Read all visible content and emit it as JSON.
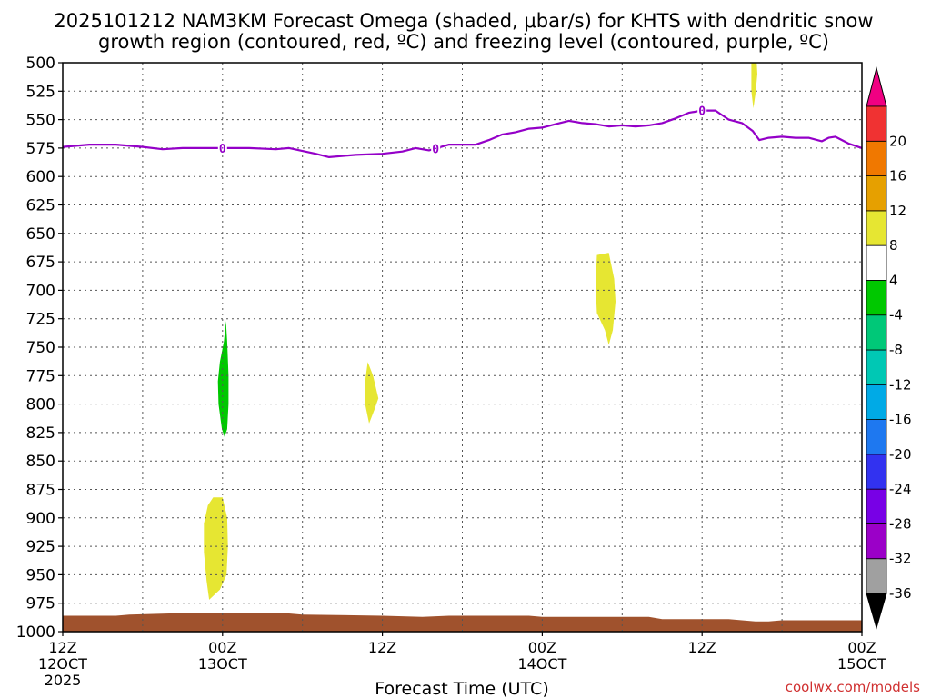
{
  "chart_data": {
    "type": "contour",
    "title_line1": "2025101212 NAM3KM Forecast Omega (shaded, μbar/s) for KHTS with dendritic snow",
    "title_line2": "growth region (contoured, red, ºC) and freezing level (contoured, purple, ºC)",
    "xlabel": "Forecast Time (UTC)",
    "credit": "coolwx.com/models",
    "y_axis": {
      "scale": "pressure (hPa), inverted",
      "ylim": [
        500,
        1000
      ],
      "ticks": [
        "500",
        "525",
        "550",
        "575",
        "600",
        "625",
        "650",
        "675",
        "700",
        "725",
        "750",
        "775",
        "800",
        "825",
        "850",
        "875",
        "900",
        "925",
        "950",
        "975",
        "1000"
      ]
    },
    "x_axis": {
      "xlim_hours": [
        0,
        60
      ],
      "ticks": [
        {
          "hour": 0,
          "l1": "12Z",
          "l2": "12OCT",
          "l3": "2025"
        },
        {
          "hour": 12,
          "l1": "00Z",
          "l2": "13OCT",
          "l3": ""
        },
        {
          "hour": 24,
          "l1": "12Z",
          "l2": "",
          "l3": ""
        },
        {
          "hour": 36,
          "l1": "00Z",
          "l2": "14OCT",
          "l3": ""
        },
        {
          "hour": 48,
          "l1": "12Z",
          "l2": "",
          "l3": ""
        },
        {
          "hour": 60,
          "l1": "00Z",
          "l2": "15OCT",
          "l3": ""
        }
      ]
    },
    "freezing_level": {
      "label": "0",
      "color": "#9400c8",
      "label_hours": [
        12,
        28,
        48
      ],
      "points": [
        [
          0,
          574
        ],
        [
          2,
          572
        ],
        [
          4,
          572
        ],
        [
          6,
          574
        ],
        [
          7.5,
          576
        ],
        [
          9,
          575
        ],
        [
          11,
          575
        ],
        [
          12,
          575
        ],
        [
          14,
          575
        ],
        [
          16,
          576
        ],
        [
          17,
          575
        ],
        [
          19,
          580
        ],
        [
          20,
          583
        ],
        [
          22,
          581
        ],
        [
          24,
          580
        ],
        [
          25.5,
          578
        ],
        [
          26.5,
          575
        ],
        [
          27.5,
          577
        ],
        [
          29,
          572
        ],
        [
          31,
          572
        ],
        [
          32,
          568
        ],
        [
          33,
          563
        ],
        [
          34,
          561
        ],
        [
          35,
          558
        ],
        [
          36,
          557
        ],
        [
          37,
          554
        ],
        [
          38,
          551
        ],
        [
          39,
          553
        ],
        [
          40,
          554
        ],
        [
          41,
          556
        ],
        [
          42,
          555
        ],
        [
          43,
          556
        ],
        [
          44,
          555
        ],
        [
          45,
          553
        ],
        [
          46,
          549
        ],
        [
          47,
          544
        ],
        [
          48,
          542
        ],
        [
          49,
          542
        ],
        [
          49.5,
          546
        ],
        [
          50,
          550
        ],
        [
          51,
          553
        ],
        [
          51.8,
          560
        ],
        [
          52.3,
          568
        ],
        [
          53,
          566
        ],
        [
          54,
          565
        ],
        [
          55,
          566
        ],
        [
          56,
          566
        ],
        [
          57,
          569
        ],
        [
          57.5,
          566
        ],
        [
          58,
          565
        ],
        [
          59,
          571
        ],
        [
          60,
          575
        ],
        [
          60.5,
          576
        ]
      ]
    },
    "omega_shaded": [
      {
        "value_range": "-8 to -4",
        "color": "#00c800",
        "points": [
          [
            11.8,
            763
          ],
          [
            12.1,
            745
          ],
          [
            12.25,
            727
          ],
          [
            12.35,
            745
          ],
          [
            12.45,
            775
          ],
          [
            12.45,
            800
          ],
          [
            12.35,
            822
          ],
          [
            12.15,
            829
          ],
          [
            11.95,
            822
          ],
          [
            11.7,
            800
          ],
          [
            11.65,
            780
          ]
        ]
      },
      {
        "value_range": "4 to 8",
        "color": "#e6e632",
        "points": [
          [
            10.9,
            889
          ],
          [
            11.3,
            882
          ],
          [
            12.0,
            882
          ],
          [
            12.35,
            900
          ],
          [
            12.4,
            925
          ],
          [
            12.3,
            950
          ],
          [
            11.8,
            963
          ],
          [
            11.0,
            972
          ],
          [
            10.8,
            955
          ],
          [
            10.6,
            930
          ],
          [
            10.6,
            905
          ]
        ]
      },
      {
        "value_range": "4 to 8",
        "color": "#e6e632",
        "points": [
          [
            22.9,
            763
          ],
          [
            23.3,
            775
          ],
          [
            23.7,
            795
          ],
          [
            23.4,
            805
          ],
          [
            23.0,
            817
          ],
          [
            22.7,
            800
          ],
          [
            22.7,
            780
          ]
        ]
      },
      {
        "value_range": "4 to 8",
        "color": "#e6e632",
        "points": [
          [
            40.1,
            669
          ],
          [
            41.0,
            667
          ],
          [
            41.4,
            690
          ],
          [
            41.5,
            710
          ],
          [
            41.3,
            735
          ],
          [
            41.0,
            748
          ],
          [
            40.7,
            735
          ],
          [
            40.1,
            720
          ],
          [
            40.0,
            695
          ]
        ]
      },
      {
        "value_range": "4 to 8",
        "color": "#e6e632",
        "points": [
          [
            51.7,
            500
          ],
          [
            52.1,
            500
          ],
          [
            52.15,
            510
          ],
          [
            52.0,
            528
          ],
          [
            51.85,
            540
          ],
          [
            51.7,
            525
          ],
          [
            51.7,
            510
          ]
        ]
      }
    ],
    "terrain": {
      "color": "#a0522d",
      "top_hpa": [
        [
          0,
          986
        ],
        [
          2,
          986
        ],
        [
          4,
          986
        ],
        [
          5,
          985
        ],
        [
          8,
          984
        ],
        [
          12,
          984
        ],
        [
          17,
          984
        ],
        [
          18,
          985
        ],
        [
          24,
          986
        ],
        [
          27,
          987
        ],
        [
          29,
          986
        ],
        [
          35,
          986
        ],
        [
          36,
          987
        ],
        [
          44,
          987
        ],
        [
          45,
          989
        ],
        [
          50,
          989
        ],
        [
          51,
          990
        ],
        [
          52,
          991
        ],
        [
          53,
          991
        ],
        [
          54,
          990
        ],
        [
          60,
          990
        ]
      ]
    },
    "colorbar": {
      "colors": [
        "#000000",
        "#a0a0a0",
        "#9b00c8",
        "#7800e6",
        "#3232f0",
        "#1e78f0",
        "#00aae6",
        "#00c8b4",
        "#00c878",
        "#00c800",
        "#ffffff",
        "#e6e632",
        "#e6a000",
        "#f07800",
        "#f03232",
        "#f00082"
      ],
      "tick_labels": [
        "-36",
        "-32",
        "-28",
        "-24",
        "-20",
        "-16",
        "-12",
        "-8",
        "-4",
        "4",
        "8",
        "12",
        "16",
        "20"
      ]
    }
  }
}
